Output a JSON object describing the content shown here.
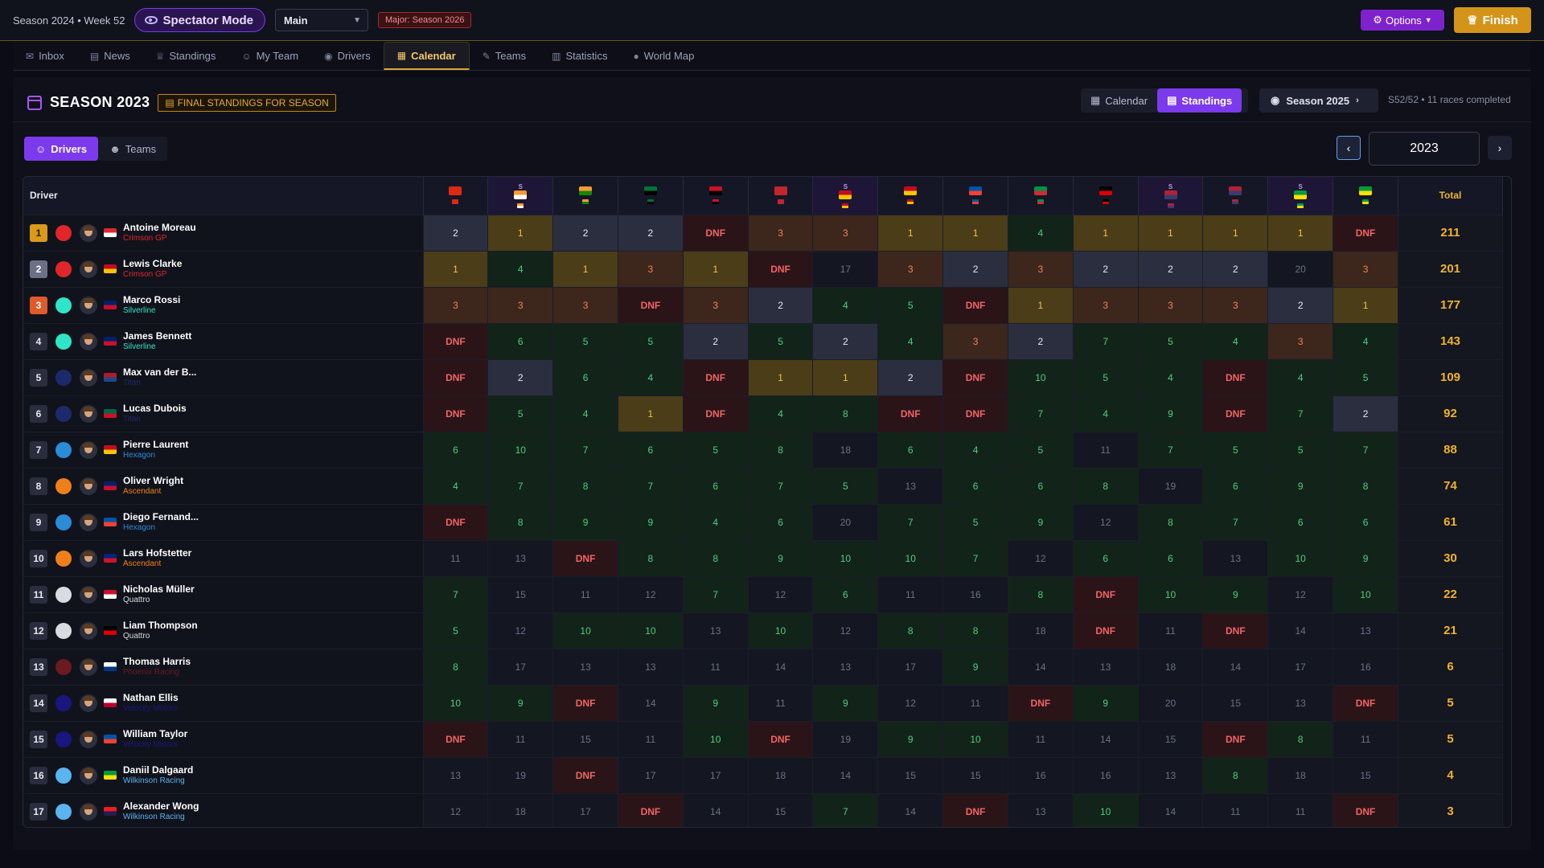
{
  "topbar": {
    "season_week": "Season 2024 • Week 52",
    "spectator": "Spectator Mode",
    "select_value": "Main",
    "major": "Major: Season 2026",
    "options": "Options",
    "finish": "Finish"
  },
  "nav": [
    {
      "label": "Inbox",
      "icon": "inbox-icon",
      "glyph": "✉"
    },
    {
      "label": "News",
      "icon": "news-icon",
      "glyph": "▤"
    },
    {
      "label": "Standings",
      "icon": "trophy-icon",
      "glyph": "♕"
    },
    {
      "label": "My Team",
      "icon": "users-icon",
      "glyph": "☺"
    },
    {
      "label": "Drivers",
      "icon": "eye-icon",
      "glyph": "◉"
    },
    {
      "label": "Calendar",
      "icon": "calendar-icon",
      "glyph": "▦",
      "active": true
    },
    {
      "label": "Teams",
      "icon": "wrench-icon",
      "glyph": "✎"
    },
    {
      "label": "Statistics",
      "icon": "bar-chart-icon",
      "glyph": "▥"
    },
    {
      "label": "World Map",
      "icon": "globe-icon",
      "glyph": "●"
    }
  ],
  "header": {
    "title": "SEASON 2023",
    "badge": "FINAL STANDINGS FOR SEASON",
    "view_calendar": "Calendar",
    "view_standings": "Standings",
    "next_season": "Season 2025",
    "progress": "S52/52 • 11 races completed"
  },
  "segment": {
    "drivers": "Drivers",
    "teams": "Teams"
  },
  "year": "2023",
  "columns": {
    "driver": "Driver",
    "total": "Total"
  },
  "races": [
    {
      "flag": [
        "#de2910",
        "#de2910"
      ],
      "sprint": false
    },
    {
      "flag": [
        "#ff9933",
        "#ffffff"
      ],
      "sprint": true
    },
    {
      "flag": [
        "#ff9933",
        "#138808"
      ],
      "sprint": false
    },
    {
      "flag": [
        "#00732f",
        "#000000"
      ],
      "sprint": false
    },
    {
      "flag": [
        "#ce1126",
        "#000000"
      ],
      "sprint": false
    },
    {
      "flag": [
        "#c1272d",
        "#c1272d"
      ],
      "sprint": false
    },
    {
      "flag": [
        "#c60b1e",
        "#ffc400"
      ],
      "sprint": true
    },
    {
      "flag": [
        "#c60b1e",
        "#ffc400"
      ],
      "sprint": false
    },
    {
      "flag": [
        "#0055a4",
        "#ef4135"
      ],
      "sprint": false
    },
    {
      "flag": [
        "#009246",
        "#ce2b37"
      ],
      "sprint": false
    },
    {
      "flag": [
        "#000000",
        "#dd0000"
      ],
      "sprint": false
    },
    {
      "flag": [
        "#b22234",
        "#3c3b6e"
      ],
      "sprint": true
    },
    {
      "flag": [
        "#b22234",
        "#3c3b6e"
      ],
      "sprint": false
    },
    {
      "flag": [
        "#009c3b",
        "#ffdf00"
      ],
      "sprint": true
    },
    {
      "flag": [
        "#009c3b",
        "#ffdf00"
      ],
      "sprint": false
    }
  ],
  "drivers": [
    {
      "pos": "1",
      "name": "Antoine Moreau",
      "team": "Crimson GP",
      "team_color": "#e0262b",
      "flag": [
        "#e0262b",
        "#ffffff"
      ],
      "results": [
        "2",
        "1",
        "2",
        "2",
        "DNF",
        "3",
        "3",
        "1",
        "1",
        "4",
        "1",
        "1",
        "1",
        "1",
        "DNF"
      ],
      "total": "211"
    },
    {
      "pos": "2",
      "name": "Lewis Clarke",
      "team": "Crimson GP",
      "team_color": "#e0262b",
      "flag": [
        "#c60b1e",
        "#ffc400"
      ],
      "results": [
        "1",
        "4",
        "1",
        "3",
        "1",
        "DNF",
        "17",
        "3",
        "2",
        "3",
        "2",
        "2",
        "2",
        "20",
        "3"
      ],
      "total": "201"
    },
    {
      "pos": "3",
      "name": "Marco Rossi",
      "team": "Silverline",
      "team_color": "#2ee6c7",
      "flag": [
        "#012169",
        "#c8102e"
      ],
      "results": [
        "3",
        "3",
        "3",
        "DNF",
        "3",
        "2",
        "4",
        "5",
        "DNF",
        "1",
        "3",
        "3",
        "3",
        "2",
        "1"
      ],
      "total": "177"
    },
    {
      "pos": "4",
      "name": "James Bennett",
      "team": "Silverline",
      "team_color": "#2ee6c7",
      "flag": [
        "#012169",
        "#c8102e"
      ],
      "results": [
        "DNF",
        "6",
        "5",
        "5",
        "2",
        "5",
        "2",
        "4",
        "3",
        "2",
        "7",
        "5",
        "4",
        "3",
        "4"
      ],
      "total": "143"
    },
    {
      "pos": "5",
      "name": "Max van der B...",
      "team": "Titan",
      "team_color": "#1c2a6b",
      "flag": [
        "#ae1c28",
        "#21468b"
      ],
      "results": [
        "DNF",
        "2",
        "6",
        "4",
        "DNF",
        "1",
        "1",
        "2",
        "DNF",
        "10",
        "5",
        "4",
        "DNF",
        "4",
        "5"
      ],
      "total": "109"
    },
    {
      "pos": "6",
      "name": "Lucas Dubois",
      "team": "Titan",
      "team_color": "#1c2a6b",
      "flag": [
        "#006847",
        "#ce1126"
      ],
      "results": [
        "DNF",
        "5",
        "4",
        "1",
        "DNF",
        "4",
        "8",
        "DNF",
        "DNF",
        "7",
        "4",
        "9",
        "DNF",
        "7",
        "2"
      ],
      "total": "92"
    },
    {
      "pos": "7",
      "name": "Pierre Laurent",
      "team": "Hexagon",
      "team_color": "#2a8bd6",
      "flag": [
        "#c60b1e",
        "#ffc400"
      ],
      "results": [
        "6",
        "10",
        "7",
        "6",
        "5",
        "8",
        "18",
        "6",
        "4",
        "5",
        "11",
        "7",
        "5",
        "5",
        "7"
      ],
      "total": "88"
    },
    {
      "pos": "8",
      "name": "Oliver Wright",
      "team": "Ascendant",
      "team_color": "#f07f1a",
      "flag": [
        "#012169",
        "#c8102e"
      ],
      "results": [
        "4",
        "7",
        "8",
        "7",
        "6",
        "7",
        "5",
        "13",
        "6",
        "6",
        "8",
        "19",
        "6",
        "9",
        "8"
      ],
      "total": "74"
    },
    {
      "pos": "9",
      "name": "Diego Fernand...",
      "team": "Hexagon",
      "team_color": "#2a8bd6",
      "flag": [
        "#0055a4",
        "#ef4135"
      ],
      "results": [
        "DNF",
        "8",
        "9",
        "9",
        "4",
        "6",
        "20",
        "7",
        "5",
        "9",
        "12",
        "8",
        "7",
        "6",
        "6"
      ],
      "total": "61"
    },
    {
      "pos": "10",
      "name": "Lars Hofstetter",
      "team": "Ascendant",
      "team_color": "#f07f1a",
      "flag": [
        "#00247d",
        "#cc142b"
      ],
      "results": [
        "11",
        "13",
        "DNF",
        "8",
        "8",
        "9",
        "10",
        "10",
        "7",
        "12",
        "6",
        "6",
        "13",
        "10",
        "9"
      ],
      "total": "30"
    },
    {
      "pos": "11",
      "name": "Nicholas Müller",
      "team": "Quattro",
      "team_color": "#d9dbe2",
      "flag": [
        "#c8102e",
        "#ffffff"
      ],
      "results": [
        "7",
        "15",
        "11",
        "12",
        "7",
        "12",
        "6",
        "11",
        "16",
        "8",
        "DNF",
        "10",
        "9",
        "12",
        "10"
      ],
      "total": "22"
    },
    {
      "pos": "12",
      "name": "Liam Thompson",
      "team": "Quattro",
      "team_color": "#d9dbe2",
      "flag": [
        "#000000",
        "#dd0000"
      ],
      "results": [
        "5",
        "12",
        "10",
        "10",
        "13",
        "10",
        "12",
        "8",
        "8",
        "18",
        "DNF",
        "11",
        "DNF",
        "14",
        "13"
      ],
      "total": "21"
    },
    {
      "pos": "13",
      "name": "Thomas Harris",
      "team": "Phoenix Racing",
      "team_color": "#6b1a1f",
      "flag": [
        "#ffffff",
        "#003580"
      ],
      "results": [
        "8",
        "17",
        "13",
        "13",
        "11",
        "14",
        "13",
        "17",
        "9",
        "14",
        "13",
        "18",
        "14",
        "17",
        "16"
      ],
      "total": "6"
    },
    {
      "pos": "14",
      "name": "Nathan Ellis",
      "team": "Velocity Motors",
      "team_color": "#1a1680",
      "flag": [
        "#ffffff",
        "#bc002d"
      ],
      "results": [
        "10",
        "9",
        "DNF",
        "14",
        "9",
        "11",
        "9",
        "12",
        "11",
        "DNF",
        "9",
        "20",
        "15",
        "13",
        "DNF"
      ],
      "total": "5"
    },
    {
      "pos": "15",
      "name": "William Taylor",
      "team": "Velocity Motors",
      "team_color": "#1a1680",
      "flag": [
        "#0055a4",
        "#ef4135"
      ],
      "results": [
        "DNF",
        "11",
        "15",
        "11",
        "10",
        "DNF",
        "19",
        "9",
        "10",
        "11",
        "14",
        "15",
        "DNF",
        "8",
        "11"
      ],
      "total": "5"
    },
    {
      "pos": "16",
      "name": "Daniil Dalgaard",
      "team": "Wilkinson Racing",
      "team_color": "#5ab4f0",
      "flag": [
        "#009c3b",
        "#ffdf00"
      ],
      "results": [
        "13",
        "19",
        "DNF",
        "17",
        "17",
        "18",
        "14",
        "15",
        "15",
        "16",
        "16",
        "13",
        "8",
        "18",
        "15"
      ],
      "total": "4"
    },
    {
      "pos": "17",
      "name": "Alexander Wong",
      "team": "Wilkinson Racing",
      "team_color": "#5ab4f0",
      "flag": [
        "#ed1c24",
        "#241d4f"
      ],
      "results": [
        "12",
        "18",
        "17",
        "DNF",
        "14",
        "15",
        "7",
        "14",
        "DNF",
        "13",
        "10",
        "14",
        "11",
        "11",
        "DNF"
      ],
      "total": "3"
    }
  ],
  "colors": {
    "accent": "#7c3aed",
    "gold": "#f0b429",
    "finish": "#d49419"
  }
}
